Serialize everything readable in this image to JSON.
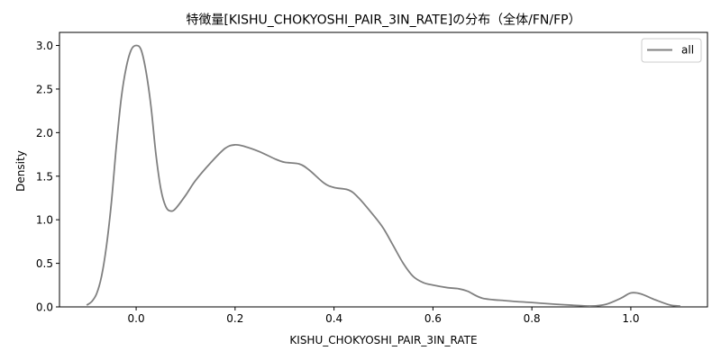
{
  "chart_data": {
    "type": "line",
    "title": "特徴量[KISHU_CHOKYOSHI_PAIR_3IN_RATE]の分布（全体/FN/FP）",
    "xlabel": "KISHU_CHOKYOSHI_PAIR_3IN_RATE",
    "ylabel": "Density",
    "xlim": [
      -0.155,
      1.155
    ],
    "ylim": [
      0,
      3.15
    ],
    "xticks": [
      0.0,
      0.2,
      0.4,
      0.6,
      0.8,
      1.0
    ],
    "xtick_labels": [
      "0.0",
      "0.2",
      "0.4",
      "0.6",
      "0.8",
      "1.0"
    ],
    "yticks": [
      0.0,
      0.5,
      1.0,
      1.5,
      2.0,
      2.5,
      3.0
    ],
    "ytick_labels": [
      "0.0",
      "0.5",
      "1.0",
      "1.5",
      "2.0",
      "2.5",
      "3.0"
    ],
    "grid": false,
    "legend": "top-right",
    "series": [
      {
        "name": "all",
        "color": "#808080",
        "x": [
          -0.1,
          -0.09,
          -0.08,
          -0.07,
          -0.06,
          -0.05,
          -0.04,
          -0.03,
          -0.02,
          -0.01,
          0.0,
          0.01,
          0.02,
          0.03,
          0.04,
          0.05,
          0.06,
          0.07,
          0.08,
          0.1,
          0.12,
          0.15,
          0.18,
          0.2,
          0.22,
          0.25,
          0.28,
          0.3,
          0.33,
          0.35,
          0.38,
          0.4,
          0.43,
          0.45,
          0.48,
          0.5,
          0.52,
          0.54,
          0.56,
          0.58,
          0.6,
          0.63,
          0.65,
          0.67,
          0.7,
          0.75,
          0.8,
          0.85,
          0.88,
          0.92,
          0.95,
          0.98,
          1.0,
          1.02,
          1.05,
          1.08,
          1.1
        ],
        "y": [
          0.02,
          0.06,
          0.15,
          0.35,
          0.7,
          1.2,
          1.85,
          2.4,
          2.75,
          2.95,
          3.0,
          2.95,
          2.7,
          2.3,
          1.75,
          1.35,
          1.15,
          1.1,
          1.13,
          1.28,
          1.45,
          1.65,
          1.82,
          1.86,
          1.84,
          1.78,
          1.7,
          1.66,
          1.64,
          1.57,
          1.42,
          1.37,
          1.34,
          1.25,
          1.05,
          0.9,
          0.7,
          0.5,
          0.35,
          0.28,
          0.25,
          0.22,
          0.21,
          0.18,
          0.1,
          0.07,
          0.05,
          0.03,
          0.02,
          0.01,
          0.03,
          0.1,
          0.16,
          0.15,
          0.08,
          0.02,
          0.01
        ]
      }
    ]
  }
}
